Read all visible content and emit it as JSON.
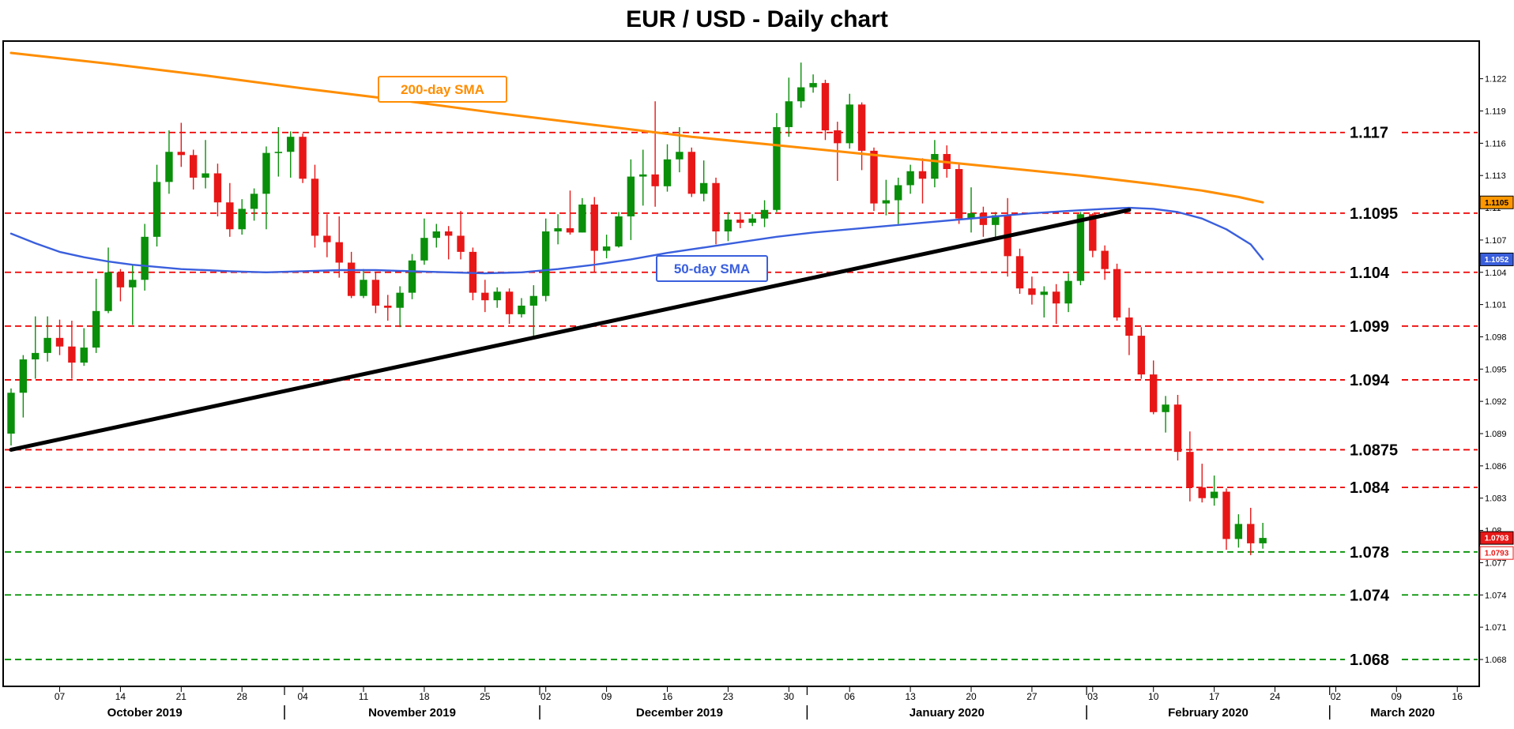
{
  "title": "EUR / USD - Daily chart",
  "chart_data": {
    "type": "candlestick",
    "colors": {
      "up": "#0a8f0a",
      "down": "#e81717",
      "sma200": "#ff8d00",
      "sma50": "#3a5fdd",
      "level_red": "#ee0000",
      "level_green": "#009000",
      "trendline": "#000000"
    },
    "y_axis": {
      "min": 1.0655,
      "max": 1.1255,
      "labels": [
        "1.122",
        "1.119",
        "1.116",
        "1.113",
        "1.11",
        "1.107",
        "1.104",
        "1.101",
        "1.098",
        "1.095",
        "1.092",
        "1.089",
        "1.086",
        "1.083",
        "1.08",
        "1.077",
        "1.074",
        "1.071",
        "1.068"
      ]
    },
    "x_axis": {
      "ticks": [
        {
          "label": "07",
          "i": 4
        },
        {
          "label": "14",
          "i": 9
        },
        {
          "label": "21",
          "i": 14
        },
        {
          "label": "28",
          "i": 19
        },
        {
          "label": "04",
          "i": 24
        },
        {
          "label": "11",
          "i": 29
        },
        {
          "label": "18",
          "i": 34
        },
        {
          "label": "25",
          "i": 39
        },
        {
          "label": "02",
          "i": 44
        },
        {
          "label": "09",
          "i": 49
        },
        {
          "label": "16",
          "i": 54
        },
        {
          "label": "23",
          "i": 59
        },
        {
          "label": "30",
          "i": 64
        },
        {
          "label": "06",
          "i": 69
        },
        {
          "label": "13",
          "i": 74
        },
        {
          "label": "20",
          "i": 79
        },
        {
          "label": "27",
          "i": 84
        },
        {
          "label": "03",
          "i": 89
        },
        {
          "label": "10",
          "i": 94
        },
        {
          "label": "17",
          "i": 99
        },
        {
          "label": "24",
          "i": 104
        },
        {
          "label": "02",
          "i": 109
        },
        {
          "label": "09",
          "i": 114
        },
        {
          "label": "16",
          "i": 119
        }
      ],
      "months": [
        {
          "label": "October 2019",
          "i": 11
        },
        {
          "label": "November 2019",
          "i": 33
        },
        {
          "label": "December 2019",
          "i": 55
        },
        {
          "label": "January 2020",
          "i": 77
        },
        {
          "label": "February 2020",
          "i": 98.5
        },
        {
          "label": "March 2020",
          "i": 114.5
        }
      ],
      "separators_i": [
        22.5,
        43.5,
        65.5,
        88.5,
        108.5
      ]
    },
    "levels": [
      {
        "price": 1.117,
        "label": "1.117",
        "color": "#ee0000"
      },
      {
        "price": 1.1095,
        "label": "1.1095",
        "color": "#ee0000"
      },
      {
        "price": 1.104,
        "label": "1.104",
        "color": "#ee0000"
      },
      {
        "price": 1.099,
        "label": "1.099",
        "color": "#ee0000"
      },
      {
        "price": 1.094,
        "label": "1.094",
        "color": "#ee0000"
      },
      {
        "price": 1.0875,
        "label": "1.0875",
        "color": "#ee0000"
      },
      {
        "price": 1.084,
        "label": "1.084",
        "color": "#ee0000"
      },
      {
        "price": 1.078,
        "label": "1.078",
        "color": "#009000"
      },
      {
        "price": 1.074,
        "label": "1.074",
        "color": "#009000"
      },
      {
        "price": 1.068,
        "label": "1.068",
        "color": "#009000"
      }
    ],
    "sma200": {
      "label": "200-day SMA",
      "color": "#ff8d00",
      "points": [
        [
          0,
          1.1244
        ],
        [
          8,
          1.1234
        ],
        [
          16,
          1.1223
        ],
        [
          24,
          1.1211
        ],
        [
          32,
          1.12
        ],
        [
          40,
          1.1188
        ],
        [
          48,
          1.1177
        ],
        [
          56,
          1.1166
        ],
        [
          64,
          1.1157
        ],
        [
          72,
          1.1148
        ],
        [
          80,
          1.1139
        ],
        [
          88,
          1.113
        ],
        [
          94,
          1.1122
        ],
        [
          98,
          1.1116
        ],
        [
          101,
          1.111
        ],
        [
          103,
          1.1105
        ]
      ]
    },
    "sma50": {
      "label": "50-day SMA",
      "color": "#3a5fdd",
      "points": [
        [
          0,
          1.1076
        ],
        [
          2,
          1.1067
        ],
        [
          4,
          1.1059
        ],
        [
          6,
          1.1054
        ],
        [
          8,
          1.105
        ],
        [
          10,
          1.1047
        ],
        [
          12,
          1.1045
        ],
        [
          14,
          1.1043
        ],
        [
          16,
          1.1042
        ],
        [
          18,
          1.1041
        ],
        [
          21,
          1.104
        ],
        [
          24,
          1.1041
        ],
        [
          27,
          1.1042
        ],
        [
          30,
          1.1042
        ],
        [
          33,
          1.1041
        ],
        [
          36,
          1.104
        ],
        [
          39,
          1.1039
        ],
        [
          42,
          1.104
        ],
        [
          45,
          1.1043
        ],
        [
          48,
          1.1047
        ],
        [
          51,
          1.1052
        ],
        [
          54,
          1.1058
        ],
        [
          57,
          1.1063
        ],
        [
          60,
          1.1068
        ],
        [
          63,
          1.1073
        ],
        [
          66,
          1.1077
        ],
        [
          69,
          1.108
        ],
        [
          72,
          1.1083
        ],
        [
          75,
          1.1086
        ],
        [
          78,
          1.1089
        ],
        [
          81,
          1.1092
        ],
        [
          84,
          1.1095
        ],
        [
          87,
          1.1097
        ],
        [
          90,
          1.1099
        ],
        [
          92,
          1.11
        ],
        [
          94,
          1.1099
        ],
        [
          96,
          1.1096
        ],
        [
          98,
          1.109
        ],
        [
          100,
          1.108
        ],
        [
          102,
          1.1066
        ],
        [
          103,
          1.1052
        ]
      ]
    },
    "trendline": {
      "color": "#000000",
      "points": [
        [
          0,
          1.0875
        ],
        [
          92,
          1.1098
        ]
      ]
    },
    "axis_markers": [
      {
        "text": "1.1105",
        "price": 1.1105,
        "bg": "#ff9800",
        "fg": "#000000",
        "border": "#000000"
      },
      {
        "text": "1.1052",
        "price": 1.1052,
        "bg": "#3a5fdd",
        "fg": "#ffffff",
        "border": "#000000"
      },
      {
        "text": "1.0793",
        "price": 1.0793,
        "bg": "#e81717",
        "fg": "#ffffff",
        "border": "#000000"
      },
      {
        "text": "1.0793",
        "price": 1.0779,
        "bg": "#ffffff",
        "fg": "#e81717",
        "border": "#e81717"
      }
    ],
    "candles": [
      [
        1.089,
        1.0932,
        1.0879,
        1.0928
      ],
      [
        1.0928,
        1.0963,
        1.0905,
        1.0959
      ],
      [
        1.0959,
        1.0999,
        1.0941,
        1.0965
      ],
      [
        1.0965,
        1.0999,
        1.0957,
        1.0979
      ],
      [
        1.0979,
        1.0996,
        1.0963,
        1.0971
      ],
      [
        1.0971,
        1.0995,
        1.0941,
        1.0956
      ],
      [
        1.0956,
        1.0988,
        1.0953,
        1.097
      ],
      [
        1.097,
        1.1034,
        1.0965,
        1.1004
      ],
      [
        1.1004,
        1.1063,
        1.1002,
        1.104
      ],
      [
        1.104,
        1.1043,
        1.1013,
        1.1026
      ],
      [
        1.1026,
        1.1047,
        1.0991,
        1.1033
      ],
      [
        1.1033,
        1.1085,
        1.1023,
        1.1073
      ],
      [
        1.1073,
        1.114,
        1.1064,
        1.1124
      ],
      [
        1.1124,
        1.1172,
        1.1113,
        1.1152
      ],
      [
        1.1152,
        1.1179,
        1.1138,
        1.1149
      ],
      [
        1.1149,
        1.1154,
        1.1117,
        1.1128
      ],
      [
        1.1128,
        1.1163,
        1.1118,
        1.1132
      ],
      [
        1.1132,
        1.1141,
        1.1092,
        1.1105
      ],
      [
        1.1105,
        1.1123,
        1.1073,
        1.108
      ],
      [
        1.108,
        1.1108,
        1.1075,
        1.1099
      ],
      [
        1.1099,
        1.1118,
        1.1088,
        1.1113
      ],
      [
        1.1113,
        1.1157,
        1.108,
        1.1151
      ],
      [
        1.1151,
        1.1175,
        1.1129,
        1.1152
      ],
      [
        1.1152,
        1.1171,
        1.1128,
        1.1166
      ],
      [
        1.1166,
        1.1169,
        1.1123,
        1.1127
      ],
      [
        1.1127,
        1.114,
        1.1063,
        1.1074
      ],
      [
        1.1074,
        1.1094,
        1.1054,
        1.1068
      ],
      [
        1.1068,
        1.1092,
        1.1035,
        1.1049
      ],
      [
        1.1049,
        1.1059,
        1.1016,
        1.1018
      ],
      [
        1.1018,
        1.1043,
        1.1016,
        1.1033
      ],
      [
        1.1033,
        1.104,
        1.1002,
        1.1009
      ],
      [
        1.1009,
        1.1019,
        1.0995,
        1.1007
      ],
      [
        1.1007,
        1.1027,
        1.0989,
        1.1021
      ],
      [
        1.1021,
        1.1057,
        1.1015,
        1.1051
      ],
      [
        1.1051,
        1.109,
        1.1047,
        1.1072
      ],
      [
        1.1072,
        1.1085,
        1.1063,
        1.1078
      ],
      [
        1.1078,
        1.1083,
        1.1052,
        1.1074
      ],
      [
        1.1074,
        1.1097,
        1.1052,
        1.1059
      ],
      [
        1.1059,
        1.1063,
        1.1014,
        1.1021
      ],
      [
        1.1021,
        1.1033,
        1.1003,
        1.1014
      ],
      [
        1.1014,
        1.1026,
        1.1007,
        1.1022
      ],
      [
        1.1022,
        1.1025,
        1.0992,
        1.1001
      ],
      [
        1.1001,
        1.1016,
        1.0998,
        1.1009
      ],
      [
        1.1009,
        1.1028,
        1.0981,
        1.1018
      ],
      [
        1.1018,
        1.109,
        1.1013,
        1.1078
      ],
      [
        1.1078,
        1.1094,
        1.1066,
        1.1081
      ],
      [
        1.1081,
        1.1116,
        1.1075,
        1.1077
      ],
      [
        1.1077,
        1.1109,
        1.1077,
        1.1103
      ],
      [
        1.1103,
        1.111,
        1.104,
        1.106
      ],
      [
        1.106,
        1.1075,
        1.1053,
        1.1064
      ],
      [
        1.1064,
        1.1096,
        1.1063,
        1.1092
      ],
      [
        1.1092,
        1.1145,
        1.107,
        1.1129
      ],
      [
        1.1129,
        1.1154,
        1.1102,
        1.1131
      ],
      [
        1.1131,
        1.1199,
        1.1101,
        1.112
      ],
      [
        1.112,
        1.1159,
        1.1115,
        1.1145
      ],
      [
        1.1145,
        1.1175,
        1.1133,
        1.1152
      ],
      [
        1.1152,
        1.1156,
        1.111,
        1.1113
      ],
      [
        1.1113,
        1.1144,
        1.1106,
        1.1123
      ],
      [
        1.1123,
        1.1128,
        1.1066,
        1.1078
      ],
      [
        1.1078,
        1.1096,
        1.1069,
        1.1089
      ],
      [
        1.1089,
        1.1096,
        1.1081,
        1.1086
      ],
      [
        1.1086,
        1.1094,
        1.1083,
        1.109
      ],
      [
        1.109,
        1.1107,
        1.1082,
        1.1098
      ],
      [
        1.1098,
        1.1188,
        1.1096,
        1.1175
      ],
      [
        1.1175,
        1.1221,
        1.1166,
        1.1199
      ],
      [
        1.1199,
        1.1235,
        1.1193,
        1.1212
      ],
      [
        1.1212,
        1.1224,
        1.1207,
        1.1216
      ],
      [
        1.1216,
        1.1219,
        1.1163,
        1.1172
      ],
      [
        1.1172,
        1.118,
        1.1125,
        1.116
      ],
      [
        1.116,
        1.1206,
        1.1155,
        1.1196
      ],
      [
        1.1196,
        1.1198,
        1.1135,
        1.1153
      ],
      [
        1.1153,
        1.1156,
        1.1097,
        1.1104
      ],
      [
        1.1104,
        1.1126,
        1.1093,
        1.1107
      ],
      [
        1.1107,
        1.1128,
        1.1085,
        1.1121
      ],
      [
        1.1121,
        1.114,
        1.1113,
        1.1134
      ],
      [
        1.1134,
        1.1146,
        1.1104,
        1.1127
      ],
      [
        1.1127,
        1.1163,
        1.1119,
        1.115
      ],
      [
        1.115,
        1.1158,
        1.1128,
        1.1136
      ],
      [
        1.1136,
        1.1141,
        1.1085,
        1.109
      ],
      [
        1.109,
        1.1119,
        1.1077,
        1.1095
      ],
      [
        1.1095,
        1.1101,
        1.1073,
        1.1084
      ],
      [
        1.1084,
        1.1096,
        1.1071,
        1.1093
      ],
      [
        1.1093,
        1.1109,
        1.1036,
        1.1055
      ],
      [
        1.1055,
        1.1062,
        1.102,
        1.1025
      ],
      [
        1.1025,
        1.1036,
        1.101,
        1.1019
      ],
      [
        1.1019,
        1.1027,
        1.0998,
        1.1022
      ],
      [
        1.1022,
        1.1029,
        1.0992,
        1.1011
      ],
      [
        1.1011,
        1.1039,
        1.1003,
        1.1032
      ],
      [
        1.1032,
        1.1096,
        1.1028,
        1.1094
      ],
      [
        1.1094,
        1.1095,
        1.1054,
        1.106
      ],
      [
        1.106,
        1.1065,
        1.1033,
        1.1043
      ],
      [
        1.1043,
        1.1048,
        1.0995,
        1.0998
      ],
      [
        1.0998,
        1.1007,
        1.0963,
        1.0981
      ],
      [
        1.0981,
        1.0989,
        1.0941,
        1.0945
      ],
      [
        1.0945,
        1.0958,
        1.0908,
        1.091
      ],
      [
        1.091,
        1.0925,
        1.0891,
        1.0917
      ],
      [
        1.0917,
        1.0926,
        1.0865,
        1.0873
      ],
      [
        1.0873,
        1.0892,
        1.0827,
        1.084
      ],
      [
        1.084,
        1.0862,
        1.0826,
        1.083
      ],
      [
        1.083,
        1.0851,
        1.0823,
        1.0836
      ],
      [
        1.0836,
        1.0839,
        1.0782,
        1.0792
      ],
      [
        1.0792,
        1.0815,
        1.0784,
        1.0806
      ],
      [
        1.0806,
        1.0821,
        1.0777,
        1.0788
      ],
      [
        1.0788,
        1.0807,
        1.0783,
        1.0793
      ]
    ]
  }
}
